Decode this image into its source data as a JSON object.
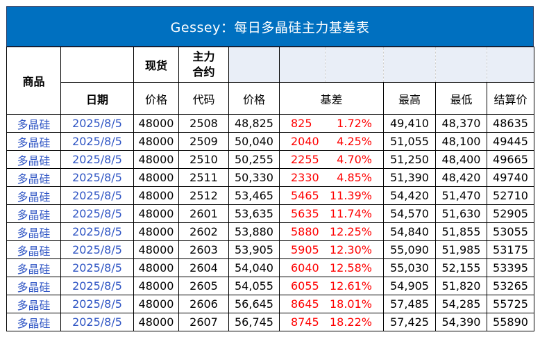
{
  "title": "Gessey：每日多晶硅主力基差表",
  "header": {
    "product": "商品",
    "date": "日期",
    "spot_top": "现货",
    "spot_bottom": "价格",
    "main_top": "主力\n合约",
    "main_code": "代码",
    "price": "价格",
    "basis": "基差",
    "high": "最高",
    "low": "最低",
    "settle": "结算价"
  },
  "rows": [
    {
      "product": "多晶硅",
      "date": "2025/8/5",
      "spot": "48000",
      "code": "2508",
      "price": "48,825",
      "basis": "825",
      "pct": "1.72%",
      "high": "49,410",
      "low": "48,370",
      "settle": "48635"
    },
    {
      "product": "多晶硅",
      "date": "2025/8/5",
      "spot": "48000",
      "code": "2509",
      "price": "50,040",
      "basis": "2040",
      "pct": "4.25%",
      "high": "51,055",
      "low": "48,100",
      "settle": "49445"
    },
    {
      "product": "多晶硅",
      "date": "2025/8/5",
      "spot": "48000",
      "code": "2510",
      "price": "50,255",
      "basis": "2255",
      "pct": "4.70%",
      "high": "51,250",
      "low": "48,400",
      "settle": "49665"
    },
    {
      "product": "多晶硅",
      "date": "2025/8/5",
      "spot": "48000",
      "code": "2511",
      "price": "50,330",
      "basis": "2330",
      "pct": "4.85%",
      "high": "51,390",
      "low": "48,420",
      "settle": "49740"
    },
    {
      "product": "多晶硅",
      "date": "2025/8/5",
      "spot": "48000",
      "code": "2512",
      "price": "53,465",
      "basis": "5465",
      "pct": "11.39%",
      "high": "54,420",
      "low": "51,470",
      "settle": "52710"
    },
    {
      "product": "多晶硅",
      "date": "2025/8/5",
      "spot": "48000",
      "code": "2601",
      "price": "53,635",
      "basis": "5635",
      "pct": "11.74%",
      "high": "54,570",
      "low": "51,630",
      "settle": "52905"
    },
    {
      "product": "多晶硅",
      "date": "2025/8/5",
      "spot": "48000",
      "code": "2602",
      "price": "53,880",
      "basis": "5880",
      "pct": "12.25%",
      "high": "54,840",
      "low": "51,855",
      "settle": "53055"
    },
    {
      "product": "多晶硅",
      "date": "2025/8/5",
      "spot": "48000",
      "code": "2603",
      "price": "53,905",
      "basis": "5905",
      "pct": "12.30%",
      "high": "55,090",
      "low": "51,985",
      "settle": "53175"
    },
    {
      "product": "多晶硅",
      "date": "2025/8/5",
      "spot": "48000",
      "code": "2604",
      "price": "54,040",
      "basis": "6040",
      "pct": "12.58%",
      "high": "55,030",
      "low": "52,155",
      "settle": "53395"
    },
    {
      "product": "多晶硅",
      "date": "2025/8/5",
      "spot": "48000",
      "code": "2605",
      "price": "54,055",
      "basis": "6055",
      "pct": "12.61%",
      "high": "54,905",
      "low": "51,820",
      "settle": "53265"
    },
    {
      "product": "多晶硅",
      "date": "2025/8/5",
      "spot": "48000",
      "code": "2606",
      "price": "56,645",
      "basis": "8645",
      "pct": "18.01%",
      "high": "57,485",
      "low": "54,285",
      "settle": "55725"
    },
    {
      "product": "多晶硅",
      "date": "2025/8/5",
      "spot": "48000",
      "code": "2607",
      "price": "56,745",
      "basis": "8745",
      "pct": "18.22%",
      "high": "57,425",
      "low": "54,390",
      "settle": "55890"
    }
  ],
  "colors": {
    "title_bg": "#0070c0",
    "title_text": "#ffffff",
    "header_fill": "#e9eef7",
    "link_blue": "#2f55c4",
    "basis_red": "#ff0000"
  }
}
